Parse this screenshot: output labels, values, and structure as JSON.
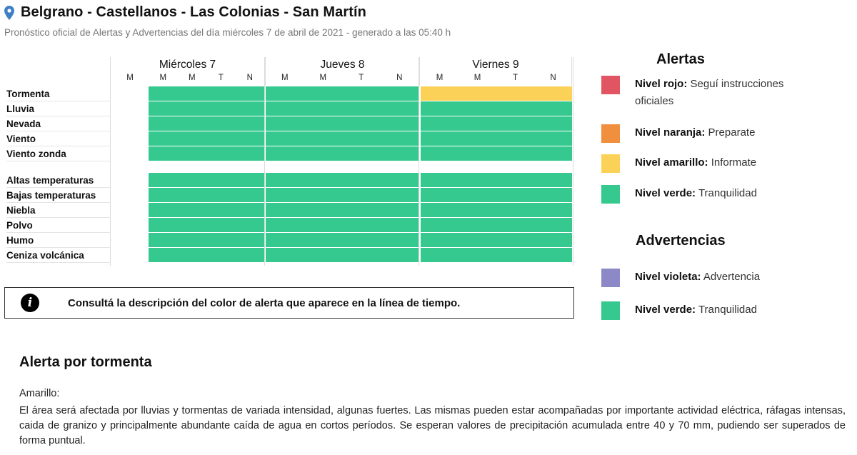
{
  "header": {
    "title": "Belgrano - Castellanos - Las Colonias - San Martín",
    "subtitle": "Pronóstico oficial de Alertas y Advertencias del día miércoles 7 de abril de 2021 - generado a las 05:40 h"
  },
  "timeline": {
    "first_tick": "M",
    "days": [
      {
        "name": "Miércoles 7",
        "ticks": [
          "M",
          "M",
          "T",
          "N"
        ]
      },
      {
        "name": "Jueves 8",
        "ticks": [
          "M",
          "M",
          "T",
          "N"
        ]
      },
      {
        "name": "Viernes 9",
        "ticks": [
          "M",
          "M",
          "T",
          "N"
        ]
      }
    ],
    "rows": [
      {
        "label": "Tormenta",
        "levels": [
          "verde",
          "verde",
          "amarillo"
        ]
      },
      {
        "label": "Lluvia",
        "levels": [
          "verde",
          "verde",
          "verde"
        ]
      },
      {
        "label": "Nevada",
        "levels": [
          "verde",
          "verde",
          "verde"
        ]
      },
      {
        "label": "Viento",
        "levels": [
          "verde",
          "verde",
          "verde"
        ]
      },
      {
        "label": "Viento zonda",
        "levels": [
          "verde",
          "verde",
          "verde"
        ]
      },
      {
        "label": "Altas temperaturas",
        "levels": [
          "verde",
          "verde",
          "verde"
        ]
      },
      {
        "label": "Bajas temperaturas",
        "levels": [
          "verde",
          "verde",
          "verde"
        ]
      },
      {
        "label": "Niebla",
        "levels": [
          "verde",
          "verde",
          "verde"
        ]
      },
      {
        "label": "Polvo",
        "levels": [
          "verde",
          "verde",
          "verde"
        ]
      },
      {
        "label": "Humo",
        "levels": [
          "verde",
          "verde",
          "verde"
        ]
      },
      {
        "label": "Ceniza volcánica",
        "levels": [
          "verde",
          "verde",
          "verde"
        ]
      }
    ]
  },
  "info": {
    "icon": "info-icon",
    "text": "Consultá la descripción del color de alerta que aparece en la línea de tiempo."
  },
  "legend": {
    "alerts_title": "Alertas",
    "alerts": [
      {
        "name": "Nivel rojo:",
        "desc": "Seguí instrucciones oficiales",
        "color": "#e05561"
      },
      {
        "name": "Nivel naranja:",
        "desc": "Preparate",
        "color": "#f0903f"
      },
      {
        "name": "Nivel amarillo:",
        "desc": "Informate",
        "color": "#fbd257"
      },
      {
        "name": "Nivel verde:",
        "desc": "Tranquilidad",
        "color": "#35c98f"
      }
    ],
    "warnings_title": "Advertencias",
    "warnings": [
      {
        "name": "Nivel violeta:",
        "desc": "Advertencia",
        "color": "#8d89c9"
      },
      {
        "name": "Nivel verde:",
        "desc": "Tranquilidad",
        "color": "#35c98f"
      }
    ]
  },
  "colors": {
    "verde": "#35c98f",
    "amarillo": "#fbd257",
    "pin": "#3f7fc4"
  },
  "description": {
    "title": "Alerta por tormenta",
    "level": "Amarillo:",
    "body": "El área será afectada por lluvias y tormentas de variada intensidad, algunas fuertes. Las mismas pueden estar acompañadas por importante actividad eléctrica, ráfagas intensas, caida de granizo y principalmente abundante caída de agua en cortos períodos. Se esperan valores de precipitación acumulada entre 40 y 70 mm, pudiendo ser superados de forma puntual."
  }
}
